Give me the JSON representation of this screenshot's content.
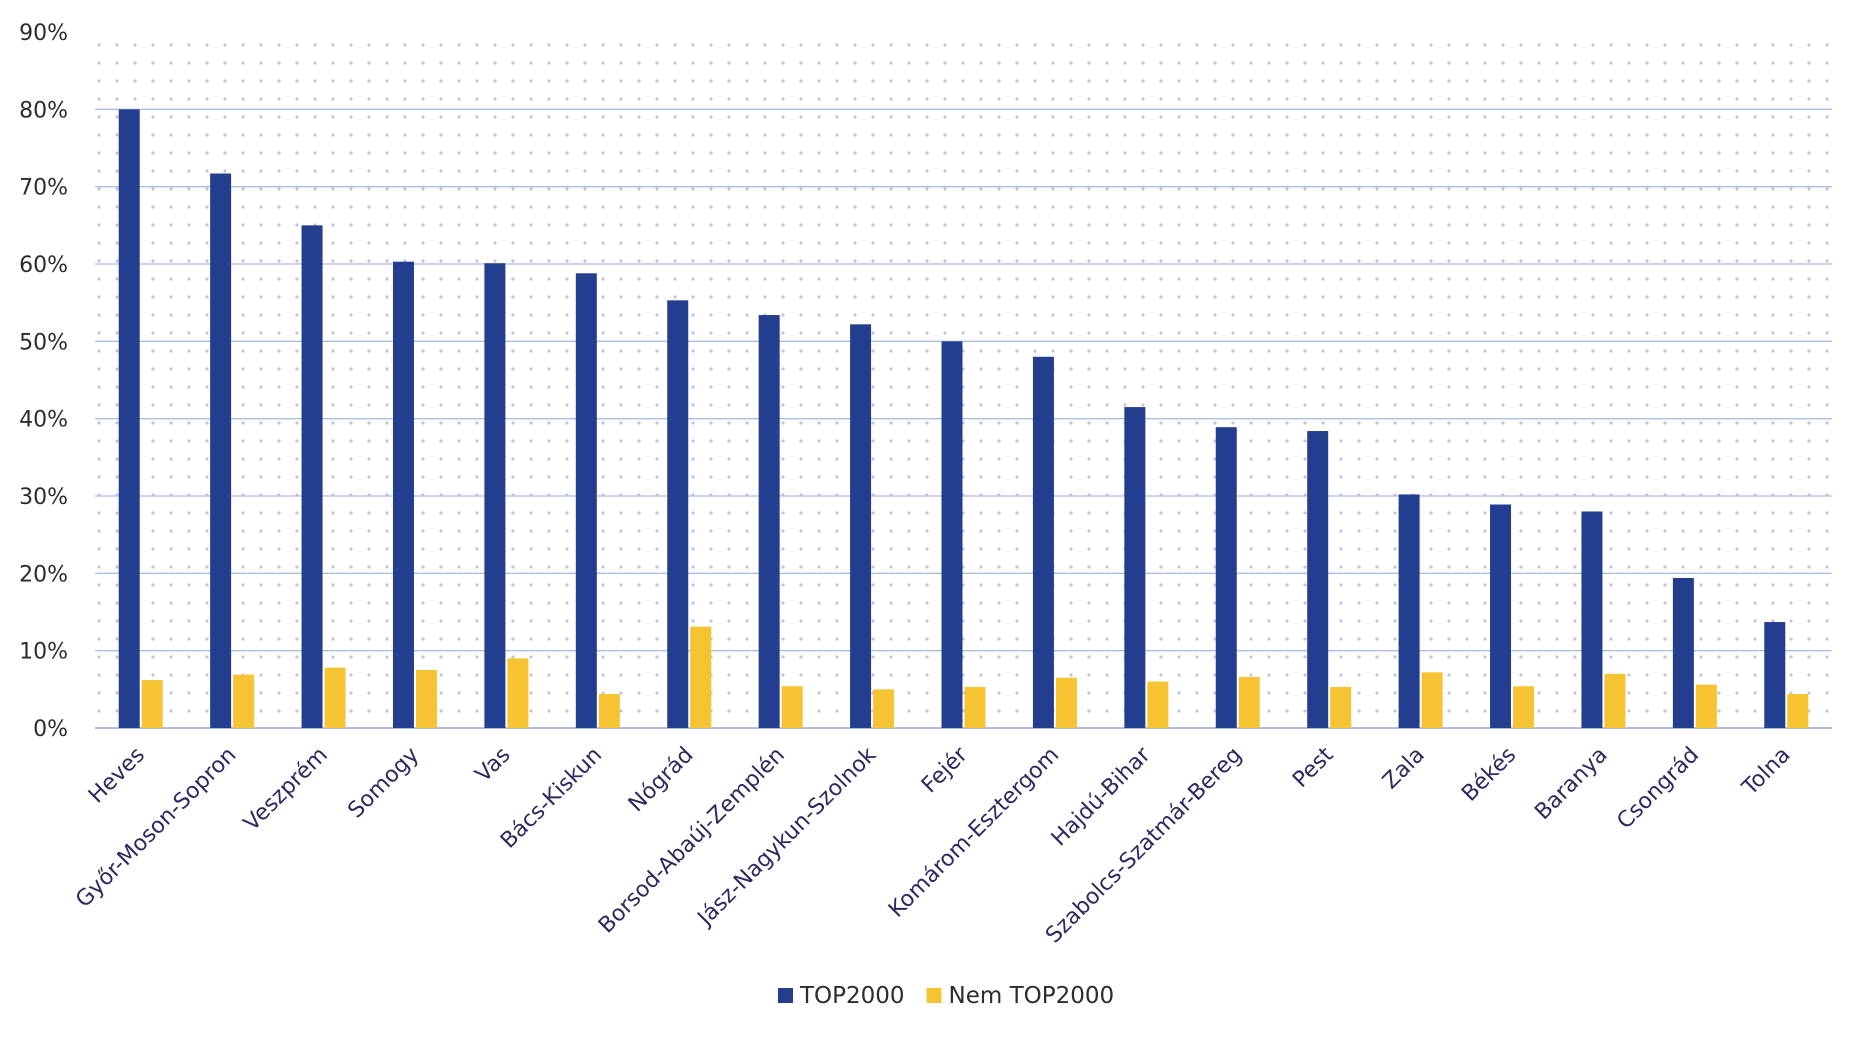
{
  "chart_data": {
    "type": "bar",
    "title": "",
    "xlabel": "",
    "ylabel": "",
    "ylim": [
      0,
      90
    ],
    "y_ticks": [
      0,
      10,
      20,
      30,
      40,
      50,
      60,
      70,
      80,
      90
    ],
    "y_tick_labels": [
      "0%",
      "10%",
      "20%",
      "30%",
      "40%",
      "50%",
      "60%",
      "70%",
      "80%",
      "90%"
    ],
    "grid": true,
    "legend_position": "bottom-center",
    "categories": [
      "Heves",
      "Győr-Moson-Sopron",
      "Veszprém",
      "Somogy",
      "Vas",
      "Bács-Kiskun",
      "Nógrád",
      "Borsod-Abaúj-Zemplén",
      "Jász-Nagykun-Szolnok",
      "Fejér",
      "Komárom-Esztergom",
      "Hajdú-Bihar",
      "Szabolcs-Szatmár-Bereg",
      "Pest",
      "Zala",
      "Békés",
      "Baranya",
      "Csongrád",
      "Tolna"
    ],
    "series": [
      {
        "name": "TOP2000",
        "color": "#243e8f",
        "values": [
          80,
          71.7,
          65,
          60.3,
          60.1,
          58.8,
          55.3,
          53.4,
          52.2,
          50,
          48,
          41.5,
          38.9,
          38.4,
          30.2,
          28.9,
          28,
          19.4,
          13.7
        ]
      },
      {
        "name": "Nem TOP2000",
        "color": "#f6c332",
        "values": [
          6.2,
          6.9,
          7.8,
          7.5,
          9,
          4.4,
          13.1,
          5.4,
          5,
          5.3,
          6.5,
          6,
          6.6,
          5.3,
          7.2,
          5.4,
          7,
          5.6,
          4.4
        ]
      }
    ]
  },
  "style": {
    "grid_color": "#aebbe2",
    "dot_color": "#c3c7d4",
    "axis_color": "#9aa6c8"
  }
}
